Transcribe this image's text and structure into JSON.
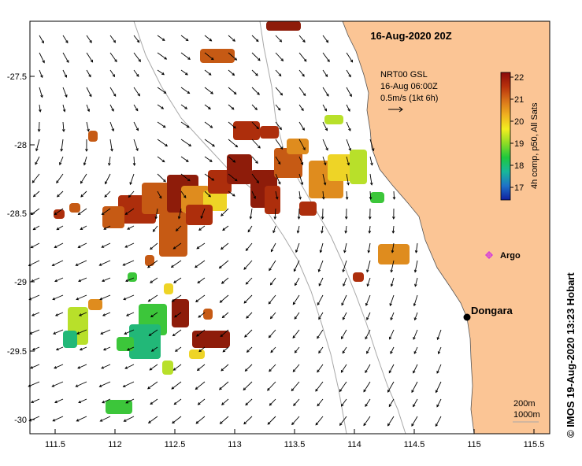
{
  "title": "16-Aug-2020 20Z",
  "current_legend": {
    "line1": "NRT00 GSL",
    "line2": "16-Aug 06:00Z",
    "line3": "0.5m/s (1kt 6h)"
  },
  "colorbar": {
    "label": "4h comp, p50, All Sats",
    "ticks": [
      "22",
      "21",
      "20",
      "19",
      "18",
      "17"
    ],
    "colors": [
      "#8b0a0a",
      "#b8320c",
      "#d9731a",
      "#f0b020",
      "#f3ee20",
      "#8edc25",
      "#1ec83c",
      "#18b89a",
      "#1e72c8",
      "#1020a0"
    ]
  },
  "places": {
    "argo": "Argo",
    "dongara": "Dongara"
  },
  "depth_legend": {
    "line1": "200m",
    "line2": "1000m"
  },
  "credit": "© IMOS 19-Aug-2020 13:23 Hobart",
  "axes": {
    "x_ticks": [
      "111.5",
      "112",
      "112.5",
      "113",
      "113.5",
      "114",
      "114.5",
      "115",
      "115.5"
    ],
    "y_ticks": [
      "-27.5",
      "-28",
      "-28.5",
      "-29",
      "-29.5",
      "-30"
    ]
  },
  "colors": {
    "land": "#fbc595",
    "warm": "#a8280c",
    "mid": "#e8a020",
    "cool": "#22c040",
    "argo": "#d030e0"
  }
}
